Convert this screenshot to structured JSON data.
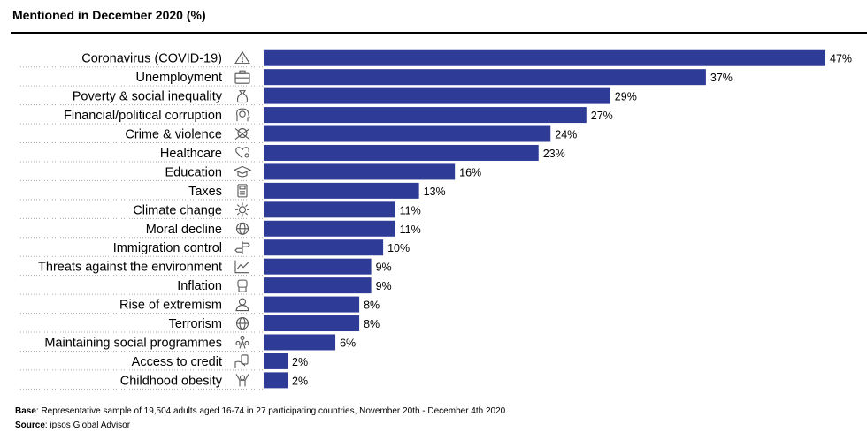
{
  "title": "Mentioned in December 2020 (%)",
  "footer": {
    "base_label": "Base",
    "base_text": ": Representative sample of 19,504 adults aged 16-74 in 27 participating countries, November 20th - December 4th 2020.",
    "source_label": "Source",
    "source_text": ": ipsos Global Advisor"
  },
  "colors": {
    "bar": "#2e3b97",
    "dotted": "#aaaaaa",
    "icon": "#555555"
  },
  "chart_data": {
    "type": "bar",
    "orientation": "horizontal",
    "categories": [
      "Coronavirus (COVID-19)",
      "Unemployment",
      "Poverty & social inequality",
      "Financial/political corruption",
      "Crime & violence",
      "Healthcare",
      "Education",
      "Taxes",
      "Climate change",
      "Moral decline",
      "Immigration control",
      "Threats against the environment",
      "Inflation",
      "Rise of extremism",
      "Terrorism",
      "Maintaining social programmes",
      "Access to credit",
      "Childhood obesity"
    ],
    "values": [
      47,
      37,
      29,
      27,
      24,
      23,
      16,
      13,
      11,
      11,
      10,
      9,
      9,
      8,
      8,
      6,
      2,
      2
    ],
    "value_suffix": "%",
    "icons": [
      "warning-icon",
      "briefcase-icon",
      "money-bag-icon",
      "dollar-head-icon",
      "skull-icon",
      "heart-stethoscope-icon",
      "graduation-cap-icon",
      "calculator-icon",
      "sun-icon",
      "globe-icon",
      "signpost-icon",
      "line-chart-icon",
      "fist-icon",
      "person-icon",
      "globe-target-icon",
      "people-icon",
      "hand-card-icon",
      "person-arms-up-icon"
    ],
    "xlim": [
      0,
      47
    ],
    "grid": false,
    "legend": "none"
  }
}
